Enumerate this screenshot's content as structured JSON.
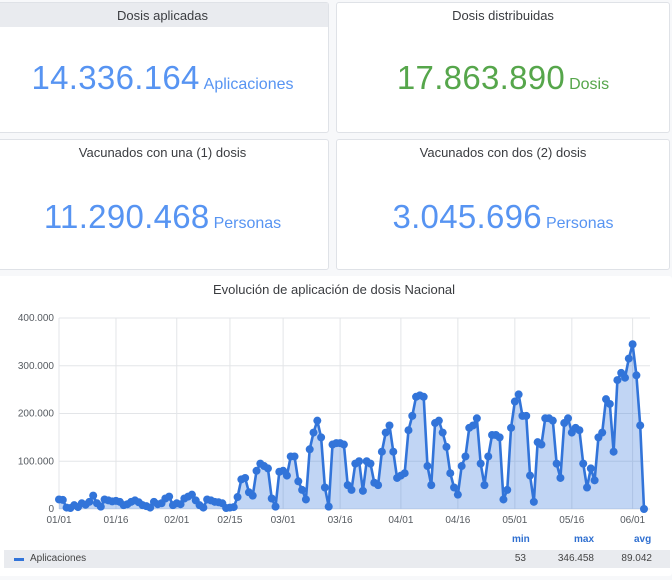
{
  "panels": {
    "applied": {
      "title": "Dosis aplicadas",
      "value": "14.336.164",
      "unit": "Aplicaciones"
    },
    "distributed": {
      "title": "Dosis distribuidas",
      "value": "17.863.890",
      "unit": "Dosis"
    },
    "one_dose": {
      "title": "Vacunados con una (1) dosis",
      "value": "11.290.468",
      "unit": "Personas"
    },
    "two_doses": {
      "title": "Vacunados con dos (2) dosis",
      "value": "3.045.696",
      "unit": "Personas"
    }
  },
  "colors": {
    "blue": "#5794f2",
    "green": "#56a64b",
    "series": "#3274d9"
  },
  "chart_data": {
    "type": "area",
    "title": "Evolución de aplicación de dosis Nacional",
    "ylim": [
      0,
      400000
    ],
    "y_ticks": [
      "0",
      "100.000",
      "200.000",
      "300.000",
      "400.000"
    ],
    "x_ticks": [
      {
        "label": "01/01",
        "day": 0
      },
      {
        "label": "01/16",
        "day": 15
      },
      {
        "label": "02/01",
        "day": 31
      },
      {
        "label": "02/15",
        "day": 45
      },
      {
        "label": "03/01",
        "day": 59
      },
      {
        "label": "03/16",
        "day": 74
      },
      {
        "label": "04/01",
        "day": 90
      },
      {
        "label": "04/16",
        "day": 105
      },
      {
        "label": "05/01",
        "day": 120
      },
      {
        "label": "05/16",
        "day": 135
      },
      {
        "label": "06/01",
        "day": 151
      }
    ],
    "grid": true,
    "series": [
      {
        "name": "Aplicaciones",
        "values": [
          20000,
          19000,
          3000,
          2000,
          8000,
          4000,
          12000,
          9000,
          15000,
          28000,
          12000,
          5000,
          20000,
          18000,
          16000,
          17000,
          15000,
          8000,
          10000,
          15000,
          18000,
          14000,
          8000,
          6000,
          3000,
          15000,
          10000,
          12000,
          22000,
          26000,
          8000,
          12000,
          10000,
          22000,
          26000,
          30000,
          18000,
          8000,
          3000,
          20000,
          18000,
          15000,
          14000,
          12000,
          2000,
          3000,
          4000,
          25000,
          62000,
          65000,
          35000,
          28000,
          80000,
          95000,
          90000,
          85000,
          22000,
          5000,
          78000,
          80000,
          70000,
          110000,
          110000,
          58000,
          40000,
          20000,
          125000,
          160000,
          185000,
          150000,
          45000,
          5000,
          135000,
          138000,
          138000,
          135000,
          50000,
          40000,
          95000,
          100000,
          38000,
          100000,
          95000,
          55000,
          50000,
          120000,
          160000,
          175000,
          120000,
          65000,
          70000,
          75000,
          165000,
          195000,
          235000,
          238000,
          235000,
          90000,
          50000,
          180000,
          185000,
          160000,
          130000,
          75000,
          45000,
          30000,
          90000,
          110000,
          170000,
          175000,
          190000,
          95000,
          50000,
          110000,
          155000,
          155000,
          150000,
          20000,
          40000,
          170000,
          225000,
          240000,
          195000,
          195000,
          70000,
          15000,
          140000,
          135000,
          190000,
          190000,
          185000,
          95000,
          65000,
          180000,
          190000,
          160000,
          170000,
          165000,
          95000,
          45000,
          85000,
          60000,
          150000,
          160000,
          230000,
          220000,
          120000,
          270000,
          285000,
          275000,
          315000,
          345000,
          280000,
          175000,
          0
        ],
        "min": "53",
        "max": "346.458",
        "avg": "89.042"
      }
    ],
    "legend": {
      "placement": "bottom",
      "headers": {
        "min": "min",
        "max": "max",
        "avg": "avg"
      }
    }
  }
}
